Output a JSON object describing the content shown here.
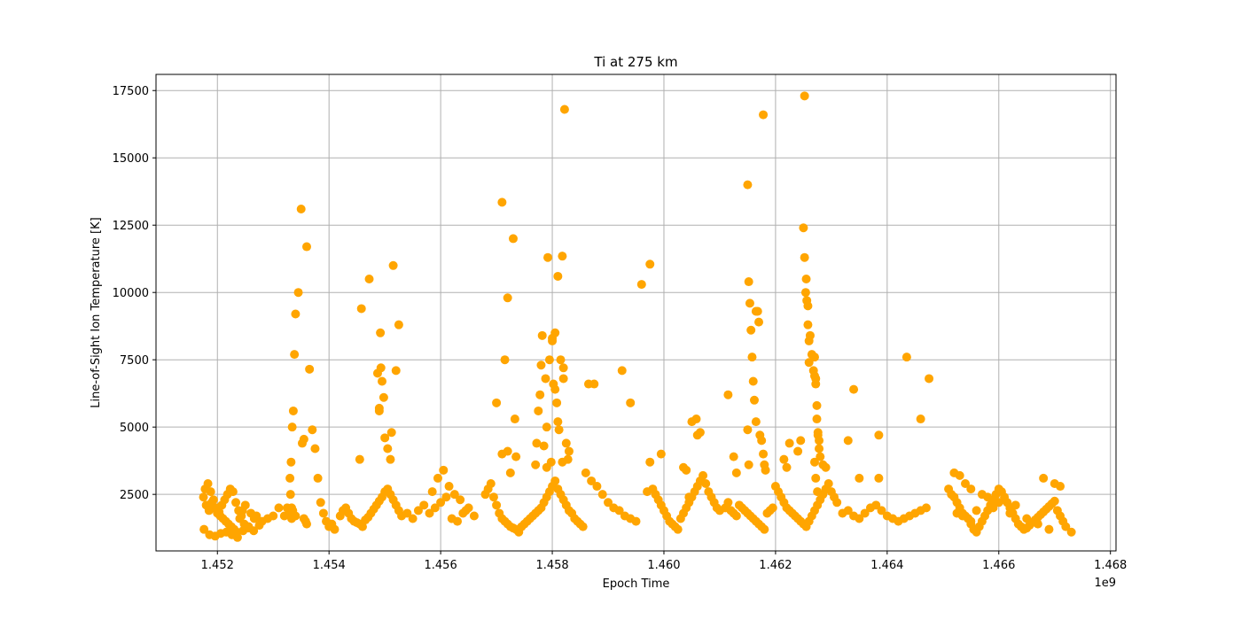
{
  "chart_data": {
    "type": "scatter",
    "title": "Ti at 275 km",
    "xlabel": "Epoch Time",
    "ylabel": "Line-of-Sight Ion Temperature [K]",
    "x_offset_label": "1e9",
    "xlim": [
      1450900000,
      1468100000
    ],
    "ylim": [
      400,
      18100
    ],
    "xticks": [
      1452000000,
      1454000000,
      1456000000,
      1458000000,
      1460000000,
      1462000000,
      1464000000,
      1466000000,
      1468000000
    ],
    "xtick_labels": [
      "1.452",
      "1.454",
      "1.456",
      "1.458",
      "1.460",
      "1.462",
      "1.464",
      "1.466",
      "1.468"
    ],
    "yticks": [
      2500,
      5000,
      7500,
      10000,
      12500,
      15000,
      17500
    ],
    "ytick_labels": [
      "2500",
      "5000",
      "7500",
      "10000",
      "12500",
      "15000",
      "17500"
    ],
    "grid": true,
    "marker_color": "#FFA500",
    "series": [
      {
        "x": [
          1451750000,
          1451800000,
          1451850000,
          1451900000,
          1451950000,
          1452000000,
          1452050000,
          1452100000,
          1452150000,
          1452200000,
          1452250000,
          1452300000,
          1452350000,
          1452400000,
          1452450000,
          1452500000,
          1452600000,
          1452700000,
          1452800000,
          1452900000,
          1453000000,
          1453100000,
          1451780000,
          1451830000,
          1451880000,
          1451930000,
          1451980000,
          1452030000,
          1452080000,
          1452130000,
          1452180000,
          1452230000,
          1452280000,
          1452330000,
          1452380000,
          1452430000,
          1452480000,
          1452550000,
          1452650000,
          1452750000,
          1451760000,
          1451860000,
          1451960000,
          1452060000,
          1452160000,
          1452260000,
          1452360000,
          1452460000,
          1452560000,
          1452660000,
          1453200000,
          1453250000,
          1453300000,
          1453320000,
          1453340000,
          1453360000,
          1453380000,
          1453400000,
          1453450000,
          1453500000,
          1453520000,
          1453550000,
          1453600000,
          1453650000,
          1453700000,
          1453750000,
          1453800000,
          1453850000,
          1453900000,
          1453950000,
          1454000000,
          1454050000,
          1454100000,
          1453310000,
          1453310000,
          1453330000,
          1453330000,
          1453350000,
          1453400000,
          1453550000,
          1453580000,
          1453600000,
          1454200000,
          1454250000,
          1454300000,
          1454350000,
          1454400000,
          1454450000,
          1454500000,
          1454550000,
          1454600000,
          1454650000,
          1454700000,
          1454750000,
          1454800000,
          1454850000,
          1454900000,
          1454950000,
          1455000000,
          1455050000,
          1455100000,
          1455150000,
          1455200000,
          1455250000,
          1454550000,
          1454580000,
          1454720000,
          1454900000,
          1454920000,
          1454930000,
          1454950000,
          1454980000,
          1455000000,
          1455050000,
          1455100000,
          1455150000,
          1455200000,
          1455250000,
          1454870000,
          1454900000,
          1455120000,
          1455300000,
          1455400000,
          1455500000,
          1455600000,
          1455700000,
          1455800000,
          1455900000,
          1456000000,
          1456100000,
          1456200000,
          1456300000,
          1456400000,
          1456500000,
          1456600000,
          1455850000,
          1455950000,
          1456050000,
          1456150000,
          1456250000,
          1456350000,
          1456450000,
          1456800000,
          1456850000,
          1456900000,
          1456950000,
          1457000000,
          1457050000,
          1457100000,
          1457150000,
          1457200000,
          1457250000,
          1457300000,
          1457350000,
          1457400000,
          1457450000,
          1457500000,
          1457550000,
          1457600000,
          1457650000,
          1457000000,
          1457100000,
          1457150000,
          1457200000,
          1457300000,
          1457330000,
          1457350000,
          1457100000,
          1457200000,
          1457250000,
          1457700000,
          1457750000,
          1457800000,
          1457850000,
          1457900000,
          1457950000,
          1458000000,
          1458050000,
          1458100000,
          1458150000,
          1458200000,
          1458250000,
          1458300000,
          1458350000,
          1458400000,
          1458450000,
          1458500000,
          1458550000,
          1457700000,
          1457720000,
          1457750000,
          1457780000,
          1457800000,
          1457820000,
          1457850000,
          1457880000,
          1457900000,
          1457920000,
          1457950000,
          1457980000,
          1458000000,
          1458020000,
          1458050000,
          1458080000,
          1458100000,
          1458120000,
          1458150000,
          1458180000,
          1458200000,
          1458220000,
          1458250000,
          1458280000,
          1458300000,
          1457900000,
          1458000000,
          1458050000,
          1458100000,
          1458200000,
          1458180000,
          1458600000,
          1458700000,
          1458800000,
          1458900000,
          1459000000,
          1459100000,
          1459200000,
          1459300000,
          1459400000,
          1459500000,
          1458650000,
          1458750000,
          1459250000,
          1459400000,
          1459600000,
          1459750000,
          1459700000,
          1459800000,
          1459850000,
          1459900000,
          1459950000,
          1460000000,
          1460050000,
          1460100000,
          1460150000,
          1460200000,
          1460250000,
          1460300000,
          1460350000,
          1460400000,
          1460450000,
          1460500000,
          1460550000,
          1460600000,
          1460650000,
          1460700000,
          1460750000,
          1460800000,
          1460850000,
          1460900000,
          1460950000,
          1461000000,
          1460500000,
          1460580000,
          1460600000,
          1460650000,
          1460350000,
          1460400000,
          1460450000,
          1459750000,
          1459950000,
          1461100000,
          1461150000,
          1461200000,
          1461250000,
          1461300000,
          1461350000,
          1461400000,
          1461450000,
          1461500000,
          1461550000,
          1461600000,
          1461650000,
          1461700000,
          1461750000,
          1461800000,
          1461850000,
          1461900000,
          1461950000,
          1461150000,
          1461250000,
          1461300000,
          1461500000,
          1461520000,
          1461540000,
          1461560000,
          1461580000,
          1461600000,
          1461620000,
          1461650000,
          1461680000,
          1461700000,
          1461720000,
          1461750000,
          1461780000,
          1461800000,
          1461820000,
          1461500000,
          1461520000,
          1461780000,
          1461650000,
          1462000000,
          1462050000,
          1462100000,
          1462150000,
          1462200000,
          1462250000,
          1462300000,
          1462350000,
          1462400000,
          1462450000,
          1462500000,
          1462550000,
          1462600000,
          1462650000,
          1462700000,
          1462750000,
          1462800000,
          1462850000,
          1462900000,
          1462950000,
          1463000000,
          1463050000,
          1463100000,
          1462150000,
          1462200000,
          1462250000,
          1462400000,
          1462450000,
          1462500000,
          1462520000,
          1462540000,
          1462560000,
          1462580000,
          1462600000,
          1462620000,
          1462650000,
          1462680000,
          1462700000,
          1462720000,
          1462740000,
          1462760000,
          1462780000,
          1462800000,
          1462850000,
          1462900000,
          1462520000,
          1462550000,
          1462580000,
          1462600000,
          1462700000,
          1462720000,
          1462740000,
          1462760000,
          1462780000,
          1462700000,
          1462720000,
          1462750000,
          1463200000,
          1463300000,
          1463400000,
          1463500000,
          1463600000,
          1463700000,
          1463800000,
          1463900000,
          1464000000,
          1464100000,
          1464200000,
          1464300000,
          1464400000,
          1464500000,
          1464600000,
          1464700000,
          1463300000,
          1463400000,
          1463500000,
          1463850000,
          1463850000,
          1464350000,
          1464750000,
          1464600000,
          1465100000,
          1465150000,
          1465200000,
          1465250000,
          1465300000,
          1465350000,
          1465400000,
          1465450000,
          1465500000,
          1465550000,
          1465600000,
          1465650000,
          1465700000,
          1465750000,
          1465800000,
          1465850000,
          1465900000,
          1465950000,
          1466000000,
          1466050000,
          1466100000,
          1466150000,
          1466200000,
          1466250000,
          1466300000,
          1466350000,
          1466400000,
          1466450000,
          1466500000,
          1466550000,
          1466600000,
          1466650000,
          1466700000,
          1466750000,
          1466800000,
          1466850000,
          1466900000,
          1466950000,
          1467000000,
          1467050000,
          1467100000,
          1467150000,
          1467200000,
          1467300000,
          1465200000,
          1465300000,
          1465400000,
          1465500000,
          1465700000,
          1465800000,
          1466000000,
          1466300000,
          1466800000,
          1467000000,
          1467100000,
          1465450000,
          1465500000,
          1465250000,
          1465350000,
          1465600000,
          1465900000,
          1466200000,
          1466500000,
          1466700000,
          1466900000
        ],
        "y": [
          2400,
          2100,
          1900,
          2200,
          2000,
          1800,
          1700,
          1600,
          1500,
          1400,
          1300,
          1200,
          1100,
          1600,
          1900,
          2100,
          1800,
          1700,
          1500,
          1600,
          1700,
          2000,
          2700,
          2900,
          2600,
          2300,
          2000,
          1850,
          2100,
          2300,
          2500,
          2700,
          2600,
          2200,
          1900,
          1700,
          1400,
          1250,
          1150,
          1350,
          1200,
          1000,
          950,
          1050,
          1100,
          1000,
          900,
          1150,
          1300,
          1600,
          1700,
          2000,
          3100,
          3700,
          5000,
          5600,
          7700,
          9200,
          10000,
          13100,
          4400,
          4550,
          11700,
          7150,
          4900,
          4200,
          3100,
          2200,
          1800,
          1500,
          1300,
          1400,
          1200,
          1800,
          2500,
          2000,
          1600,
          1900,
          1700,
          1600,
          1500,
          1400,
          1700,
          1900,
          2000,
          1800,
          1600,
          1500,
          1450,
          1400,
          1300,
          1550,
          1650,
          1800,
          1950,
          2100,
          2250,
          2400,
          2600,
          2700,
          2500,
          2300,
          2100,
          1900,
          3800,
          9400,
          10500,
          5600,
          8500,
          7200,
          6700,
          6100,
          4600,
          4200,
          3800,
          11000,
          7100,
          8800,
          7000,
          5700,
          4800,
          1700,
          1800,
          1600,
          1900,
          2100,
          1800,
          2000,
          2200,
          2400,
          1600,
          1500,
          1800,
          2000,
          1700,
          2600,
          3100,
          3400,
          2800,
          2500,
          2300,
          1900,
          2500,
          2700,
          2900,
          2400,
          2100,
          1800,
          1600,
          1500,
          1400,
          1300,
          1250,
          1200,
          1100,
          1300,
          1400,
          1500,
          1600,
          1700,
          5900,
          13350,
          7500,
          9800,
          12000,
          5300,
          3900,
          4000,
          4100,
          3300,
          1800,
          1900,
          2000,
          2200,
          2400,
          2600,
          2800,
          3000,
          2700,
          2500,
          2300,
          2100,
          1900,
          1800,
          1600,
          1500,
          1400,
          1300,
          3600,
          4400,
          5600,
          6200,
          7300,
          8400,
          4300,
          6800,
          5000,
          11300,
          7500,
          3700,
          8200,
          6600,
          6400,
          5900,
          5200,
          4900,
          7500,
          11350,
          7200,
          16800,
          4400,
          3800,
          4100,
          3500,
          8300,
          8500,
          10600,
          6800,
          3700,
          3300,
          3000,
          2800,
          2500,
          2200,
          2000,
          1900,
          1700,
          1600,
          1500,
          6600,
          6600,
          7100,
          5900,
          10300,
          11050,
          2600,
          2700,
          2500,
          2300,
          2100,
          1900,
          1700,
          1500,
          1400,
          1300,
          1200,
          1600,
          1800,
          2000,
          2200,
          2400,
          2600,
          2800,
          3000,
          3200,
          2900,
          2600,
          2400,
          2200,
          2000,
          1900,
          5200,
          5300,
          4700,
          4800,
          3500,
          3400,
          2400,
          3700,
          4000,
          2000,
          2200,
          1900,
          1800,
          1700,
          2100,
          2000,
          1900,
          1800,
          1700,
          1600,
          1500,
          1400,
          1300,
          1200,
          1800,
          1900,
          2000,
          6200,
          3900,
          3300,
          14000,
          10400,
          9600,
          8600,
          7600,
          6700,
          6000,
          5200,
          9300,
          8900,
          4700,
          4500,
          4000,
          3600,
          3400,
          4900,
          3600,
          16600,
          9300,
          2800,
          2600,
          2400,
          2200,
          2000,
          1900,
          1800,
          1700,
          1600,
          1500,
          1400,
          1300,
          1500,
          1700,
          1900,
          2100,
          2300,
          2500,
          2700,
          2900,
          2600,
          2400,
          2200,
          3800,
          3500,
          4400,
          4100,
          4500,
          12400,
          11300,
          10000,
          9700,
          9500,
          8200,
          8400,
          7700,
          7100,
          6900,
          6600,
          5300,
          4800,
          4200,
          3900,
          3600,
          3500,
          17300,
          10500,
          8800,
          7400,
          7600,
          6800,
          5800,
          4700,
          4500,
          3700,
          3100,
          2600,
          1800,
          1900,
          1700,
          1600,
          1800,
          2000,
          2100,
          1900,
          1700,
          1600,
          1500,
          1600,
          1700,
          1800,
          1900,
          2000,
          4500,
          6400,
          3100,
          3100,
          4700,
          7600,
          6800,
          5300,
          2700,
          2500,
          2400,
          2200,
          2000,
          1800,
          1700,
          1600,
          1400,
          1200,
          1100,
          1300,
          1500,
          1700,
          1900,
          2100,
          2300,
          2500,
          2700,
          2600,
          2400,
          2200,
          2000,
          1800,
          1600,
          1400,
          1300,
          1200,
          1250,
          1350,
          1450,
          1550,
          1650,
          1750,
          1850,
          1950,
          2050,
          2150,
          2250,
          1900,
          1700,
          1500,
          1300,
          1100,
          3300,
          3200,
          2900,
          2700,
          2500,
          2400,
          2200,
          2100,
          3100,
          2900,
          2800,
          1600,
          1500,
          1800,
          1700,
          1900,
          2000,
          1800,
          1600,
          1400,
          1200
        ]
      }
    ]
  }
}
